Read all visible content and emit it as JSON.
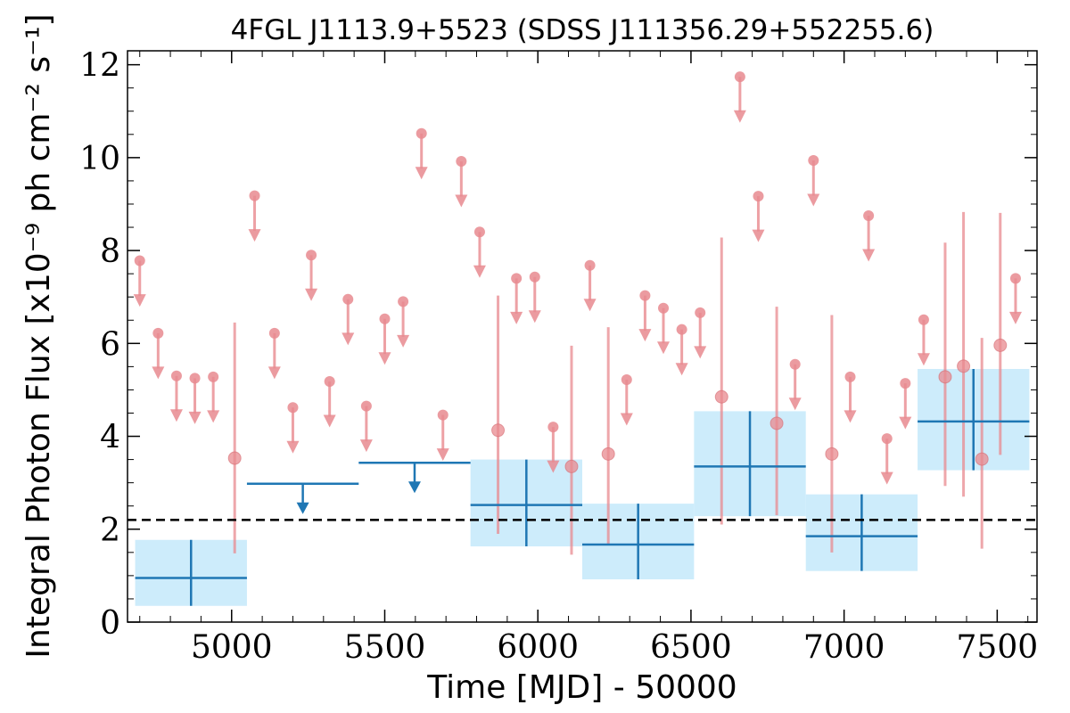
{
  "chart_data": {
    "type": "scatter",
    "title": "4FGL J1113.9+5523 (SDSS J111356.29+552255.6)",
    "xlabel": "Time [MJD] - 50000",
    "ylabel": "Integral Photon Flux [x10⁻⁹ ph cm⁻² s⁻¹]",
    "xlim": [
      4660,
      7630
    ],
    "ylim": [
      0,
      12.3
    ],
    "xticks": [
      5000,
      5500,
      6000,
      6500,
      7000,
      7500
    ],
    "yticks": [
      0,
      2,
      4,
      6,
      8,
      10,
      12
    ],
    "grid": false,
    "legend": "none",
    "reference_line": {
      "y": 2.2,
      "style": "dashed",
      "color": "#000000"
    },
    "colors": {
      "short_bins": "#e88a8f",
      "long_bins": "#1f77b4",
      "long_bin_box": "#cdecfb"
    },
    "short_bin_upper_limits": [
      {
        "x": 4700,
        "y": 7.78
      },
      {
        "x": 4760,
        "y": 6.22
      },
      {
        "x": 4820,
        "y": 5.3
      },
      {
        "x": 4880,
        "y": 5.25
      },
      {
        "x": 4940,
        "y": 5.28
      },
      {
        "x": 5075,
        "y": 9.18
      },
      {
        "x": 5140,
        "y": 6.22
      },
      {
        "x": 5200,
        "y": 4.62
      },
      {
        "x": 5260,
        "y": 7.9
      },
      {
        "x": 5320,
        "y": 5.18
      },
      {
        "x": 5380,
        "y": 6.95
      },
      {
        "x": 5440,
        "y": 4.65
      },
      {
        "x": 5500,
        "y": 6.53
      },
      {
        "x": 5560,
        "y": 6.9
      },
      {
        "x": 5620,
        "y": 10.52
      },
      {
        "x": 5690,
        "y": 4.46
      },
      {
        "x": 5750,
        "y": 9.92
      },
      {
        "x": 5810,
        "y": 8.4
      },
      {
        "x": 5930,
        "y": 7.4
      },
      {
        "x": 5990,
        "y": 7.43
      },
      {
        "x": 6050,
        "y": 4.2
      },
      {
        "x": 6170,
        "y": 7.68
      },
      {
        "x": 6290,
        "y": 5.22
      },
      {
        "x": 6350,
        "y": 7.03
      },
      {
        "x": 6410,
        "y": 6.76
      },
      {
        "x": 6470,
        "y": 6.3
      },
      {
        "x": 6530,
        "y": 6.66
      },
      {
        "x": 6660,
        "y": 11.74
      },
      {
        "x": 6720,
        "y": 9.17
      },
      {
        "x": 6840,
        "y": 5.55
      },
      {
        "x": 6900,
        "y": 9.94
      },
      {
        "x": 7020,
        "y": 5.28
      },
      {
        "x": 7080,
        "y": 8.75
      },
      {
        "x": 7140,
        "y": 3.95
      },
      {
        "x": 7200,
        "y": 5.14
      },
      {
        "x": 7260,
        "y": 6.51
      },
      {
        "x": 7560,
        "y": 7.4
      }
    ],
    "short_bin_detections": [
      {
        "x": 5010,
        "y": 3.53,
        "ylo": 1.48,
        "yhi": 6.45
      },
      {
        "x": 5870,
        "y": 4.13,
        "ylo": 1.9,
        "yhi": 7.03
      },
      {
        "x": 6110,
        "y": 3.35,
        "ylo": 1.45,
        "yhi": 5.95
      },
      {
        "x": 6230,
        "y": 3.62,
        "ylo": 1.65,
        "yhi": 6.35
      },
      {
        "x": 6600,
        "y": 4.85,
        "ylo": 2.1,
        "yhi": 8.28
      },
      {
        "x": 6780,
        "y": 4.28,
        "ylo": 2.3,
        "yhi": 6.79
      },
      {
        "x": 6960,
        "y": 3.62,
        "ylo": 1.5,
        "yhi": 6.61
      },
      {
        "x": 7330,
        "y": 5.28,
        "ylo": 2.93,
        "yhi": 8.17
      },
      {
        "x": 7390,
        "y": 5.51,
        "ylo": 2.7,
        "yhi": 8.83
      },
      {
        "x": 7450,
        "y": 3.51,
        "ylo": 1.58,
        "yhi": 6.12
      },
      {
        "x": 7510,
        "y": 5.96,
        "ylo": 3.6,
        "yhi": 8.81
      }
    ],
    "long_bin_upper_limits": [
      {
        "x0": 5050,
        "x1": 5415,
        "y": 2.98
      },
      {
        "x0": 5415,
        "x1": 5780,
        "y": 3.43
      }
    ],
    "long_bin_detections": [
      {
        "x0": 4685,
        "x1": 5050,
        "y": 0.95,
        "ylo": 0.35,
        "yhi": 1.77
      },
      {
        "x0": 5780,
        "x1": 6145,
        "y": 2.52,
        "ylo": 1.63,
        "yhi": 3.5
      },
      {
        "x0": 6145,
        "x1": 6510,
        "y": 1.67,
        "ylo": 0.92,
        "yhi": 2.55
      },
      {
        "x0": 6510,
        "x1": 6875,
        "y": 3.35,
        "ylo": 2.28,
        "yhi": 4.54
      },
      {
        "x0": 6875,
        "x1": 7240,
        "y": 1.85,
        "ylo": 1.1,
        "yhi": 2.75
      },
      {
        "x0": 7240,
        "x1": 7605,
        "y": 4.32,
        "ylo": 3.27,
        "yhi": 5.45
      }
    ]
  }
}
